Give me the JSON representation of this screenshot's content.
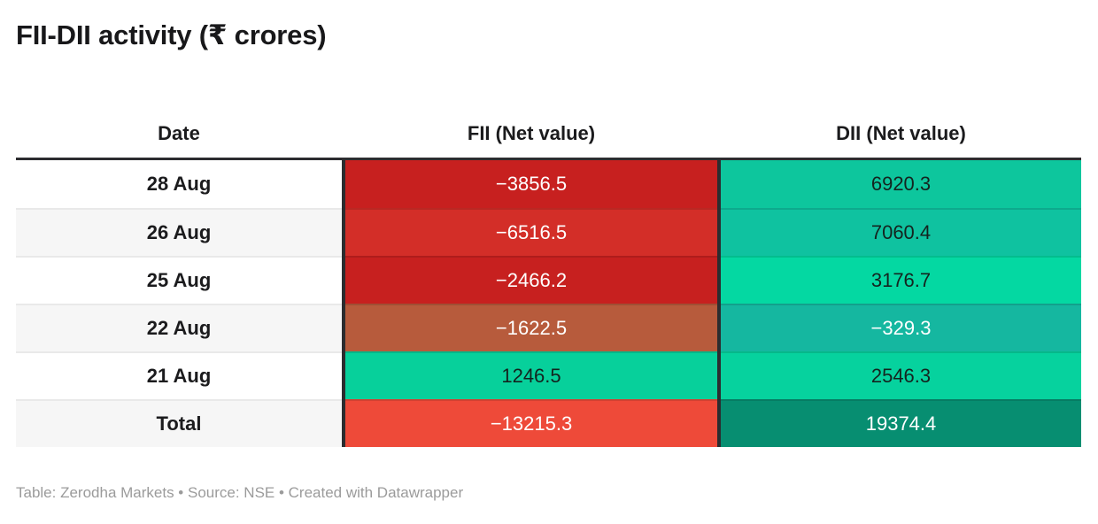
{
  "title": "FII-DII activity (₹ crores)",
  "table": {
    "columns": [
      "Date",
      "FII (Net value)",
      "DII (Net value)"
    ],
    "rows": [
      {
        "date": "28 Aug",
        "fii": "−3856.5",
        "dii": "6920.3",
        "date_bg": "#ffffff",
        "fii_bg": "#c7201f",
        "fii_fg": "#ffffff",
        "dii_bg": "#0dc69d",
        "dii_fg": "#14241f"
      },
      {
        "date": "26 Aug",
        "fii": "−6516.5",
        "dii": "7060.4",
        "date_bg": "#f6f6f6",
        "fii_bg": "#d32e28",
        "fii_fg": "#ffffff",
        "dii_bg": "#0fc2a0",
        "dii_fg": "#14241f"
      },
      {
        "date": "25 Aug",
        "fii": "−2466.2",
        "dii": "3176.7",
        "date_bg": "#ffffff",
        "fii_bg": "#c7201f",
        "fii_fg": "#ffffff",
        "dii_bg": "#04d8a2",
        "dii_fg": "#14241f"
      },
      {
        "date": "22 Aug",
        "fii": "−1622.5",
        "dii": "−329.3",
        "date_bg": "#f6f6f6",
        "fii_bg": "#b75b3c",
        "fii_fg": "#ffffff",
        "dii_bg": "#15b7a0",
        "dii_fg": "#ffffff"
      },
      {
        "date": "21 Aug",
        "fii": "1246.5",
        "dii": "2546.3",
        "date_bg": "#ffffff",
        "fii_bg": "#07d09b",
        "fii_fg": "#13231e",
        "dii_bg": "#06d29e",
        "dii_fg": "#14241f"
      },
      {
        "date": "Total",
        "fii": "−13215.3",
        "dii": "19374.4",
        "date_bg": "#f6f6f6",
        "fii_bg": "#ee4a39",
        "fii_fg": "#ffffff",
        "dii_bg": "#078e71",
        "dii_fg": "#ffffff"
      }
    ]
  },
  "footer": {
    "text": "Table: Zerodha Markets • Source: NSE • Created with Datawrapper"
  },
  "colors": {
    "header_border": "#2c2c2f",
    "column_separator": "#2c2c2f",
    "title_text": "#18181a",
    "footer_text": "#9b9b9b",
    "row_alt_bg": "#f6f6f6",
    "negative_red": "#c7201f",
    "positive_green": "#06d29e"
  },
  "chart_data": {
    "type": "table",
    "title": "FII-DII activity (₹ crores)",
    "columns": [
      "Date",
      "FII (Net value)",
      "DII (Net value)"
    ],
    "rows": [
      [
        "28 Aug",
        -3856.5,
        6920.3
      ],
      [
        "26 Aug",
        -6516.5,
        7060.4
      ],
      [
        "25 Aug",
        -2466.2,
        3176.7
      ],
      [
        "22 Aug",
        -1622.5,
        -329.3
      ],
      [
        "21 Aug",
        1246.5,
        2546.3
      ],
      [
        "Total",
        -13215.3,
        19374.4
      ]
    ],
    "notes": "Table: Zerodha Markets • Source: NSE • Created with Datawrapper",
    "style": "heatmap table: negative values shaded red, positive values shaded green; intensity scales with magnitude"
  }
}
